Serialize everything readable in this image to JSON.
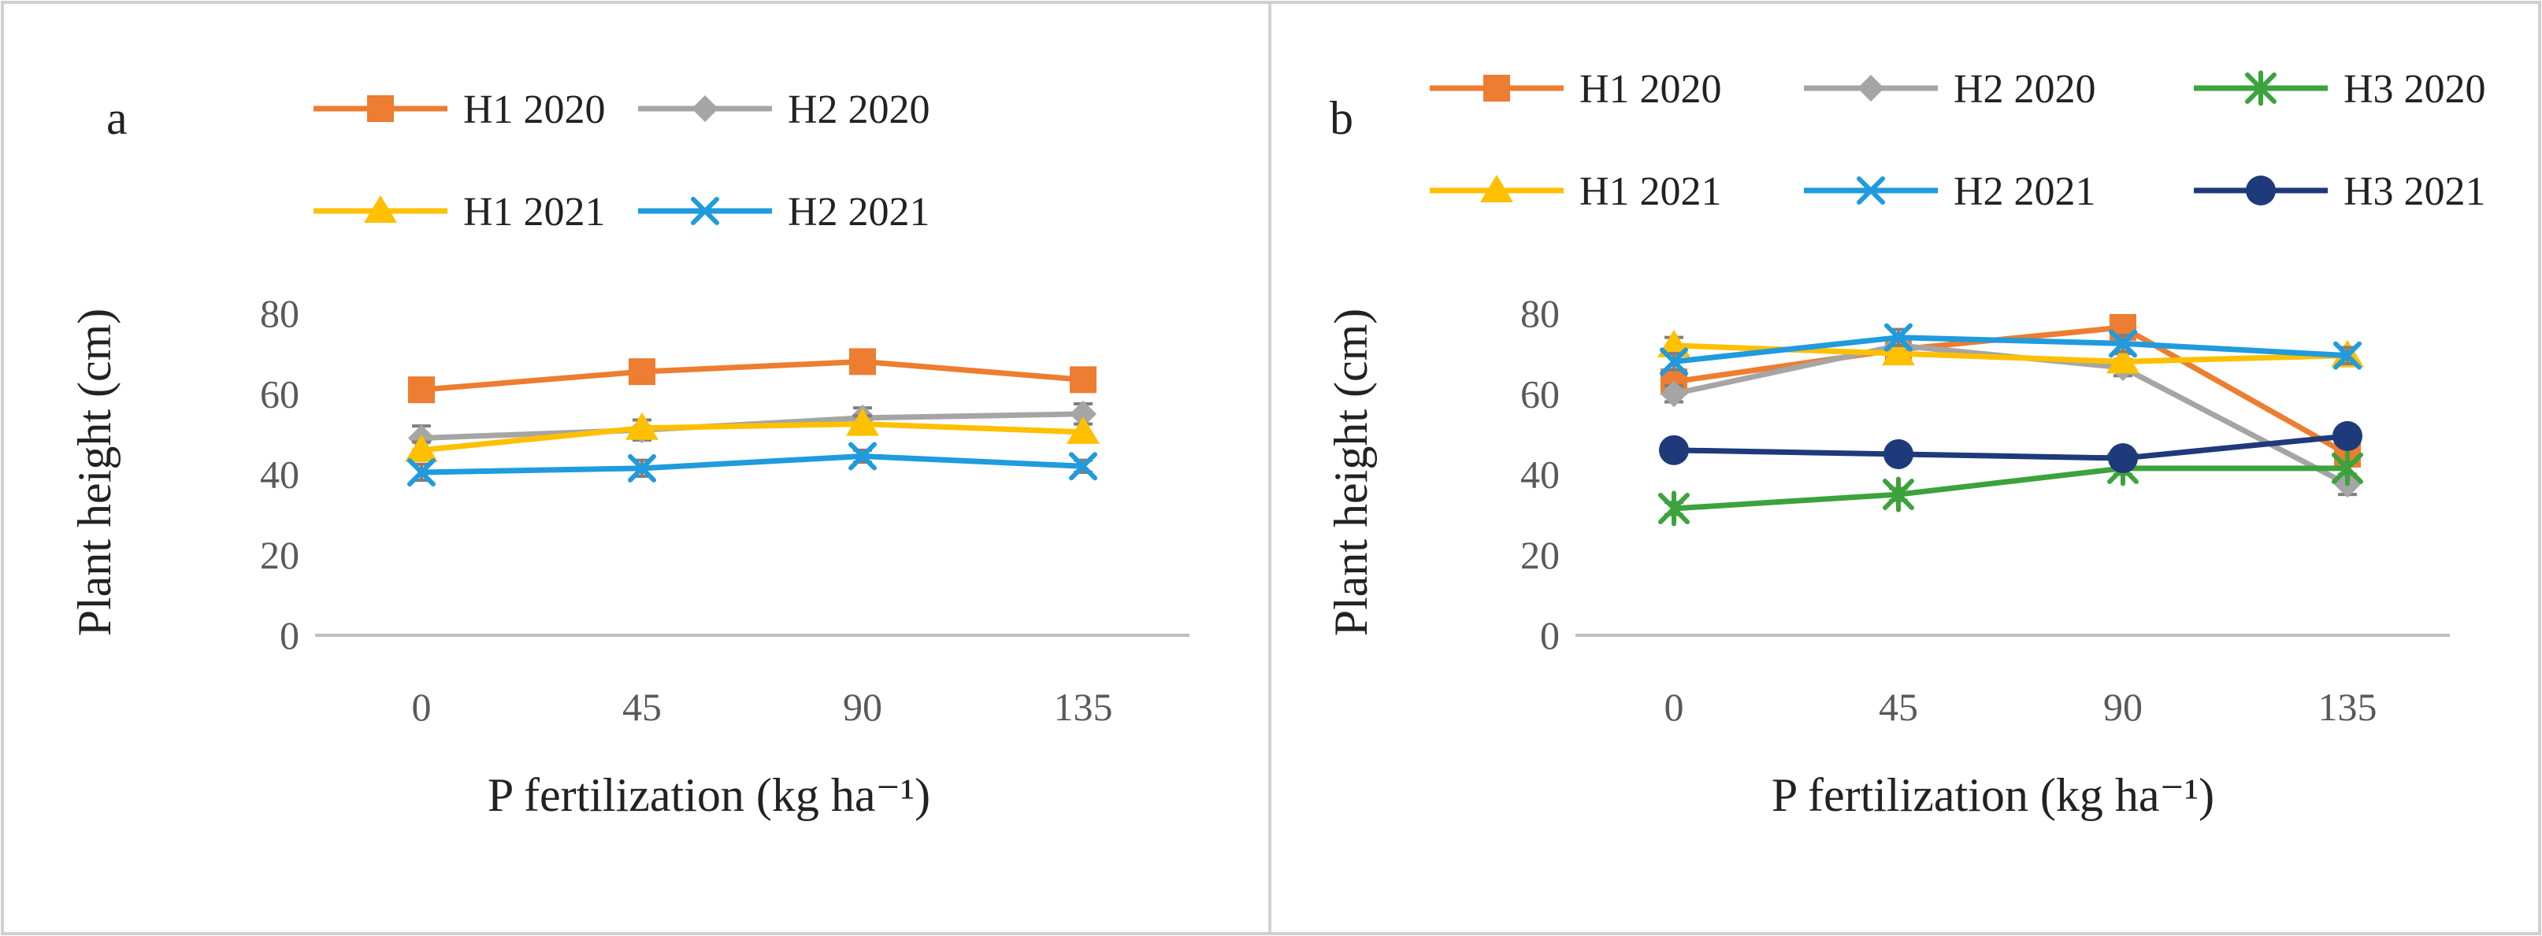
{
  "figure": {
    "panels": [
      "a",
      "b"
    ]
  },
  "chart_data": [
    {
      "type": "line",
      "panel_label": "a",
      "xlabel": "P fertilization (kg ha⁻¹)",
      "ylabel": "Plant height (cm)",
      "categories": [
        "0",
        "45",
        "90",
        "135"
      ],
      "yticks": [
        "0",
        "20",
        "40",
        "60",
        "80"
      ],
      "ylim": [
        0,
        80
      ],
      "grid": false,
      "legend_position": "top",
      "series": [
        {
          "name": "H1 2020",
          "values": [
            61,
            65.5,
            68,
            63.5
          ],
          "errors": [
            2,
            2,
            2,
            2.5
          ],
          "color": "#ED7D31",
          "marker": "square"
        },
        {
          "name": "H2 2020",
          "values": [
            49,
            51,
            54,
            55
          ],
          "errors": [
            3,
            2.5,
            2.5,
            2.5
          ],
          "color": "#A5A5A5",
          "marker": "diamond"
        },
        {
          "name": "H1 2021",
          "values": [
            46,
            51.5,
            52.5,
            50.5
          ],
          "errors": [
            2,
            2,
            2,
            2
          ],
          "color": "#FFC000",
          "marker": "triangle"
        },
        {
          "name": "H2 2021",
          "values": [
            40.5,
            41.5,
            44.5,
            42
          ],
          "errors": [
            2,
            2,
            1.5,
            1.5
          ],
          "color": "#1F9BDE",
          "marker": "x"
        }
      ]
    },
    {
      "type": "line",
      "panel_label": "b",
      "xlabel": "P fertilization (kg ha⁻¹)",
      "ylabel": "Plant height (cm)",
      "categories": [
        "0",
        "45",
        "90",
        "135"
      ],
      "yticks": [
        "0",
        "20",
        "40",
        "60",
        "80"
      ],
      "ylim": [
        0,
        80
      ],
      "grid": false,
      "legend_position": "top",
      "series": [
        {
          "name": "H1 2020",
          "values": [
            63,
            71,
            76.5,
            45
          ],
          "errors": [
            2,
            2,
            2,
            2.5
          ],
          "color": "#ED7D31",
          "marker": "square"
        },
        {
          "name": "H2 2020",
          "values": [
            60,
            72,
            66.5,
            37.5
          ],
          "errors": [
            2,
            2,
            2,
            2.5
          ],
          "color": "#A5A5A5",
          "marker": "diamond"
        },
        {
          "name": "H3 2020",
          "values": [
            31.5,
            35,
            41.5,
            41.5
          ],
          "errors": [
            1.5,
            1.5,
            1.5,
            1.5
          ],
          "color": "#3CA33C",
          "marker": "star"
        },
        {
          "name": "H1 2021",
          "values": [
            72,
            70,
            68,
            69.5
          ],
          "errors": [
            2,
            2,
            2,
            2
          ],
          "color": "#FFC000",
          "marker": "triangle"
        },
        {
          "name": "H2 2021",
          "values": [
            68,
            74,
            72.5,
            69.5
          ],
          "errors": [
            2,
            2,
            2,
            2
          ],
          "color": "#1F9BDE",
          "marker": "x"
        },
        {
          "name": "H3 2021",
          "values": [
            46,
            45,
            44,
            49.5
          ],
          "errors": [
            1.5,
            1.5,
            1.5,
            2.5
          ],
          "color": "#1F3A7A",
          "marker": "circle"
        }
      ]
    }
  ]
}
